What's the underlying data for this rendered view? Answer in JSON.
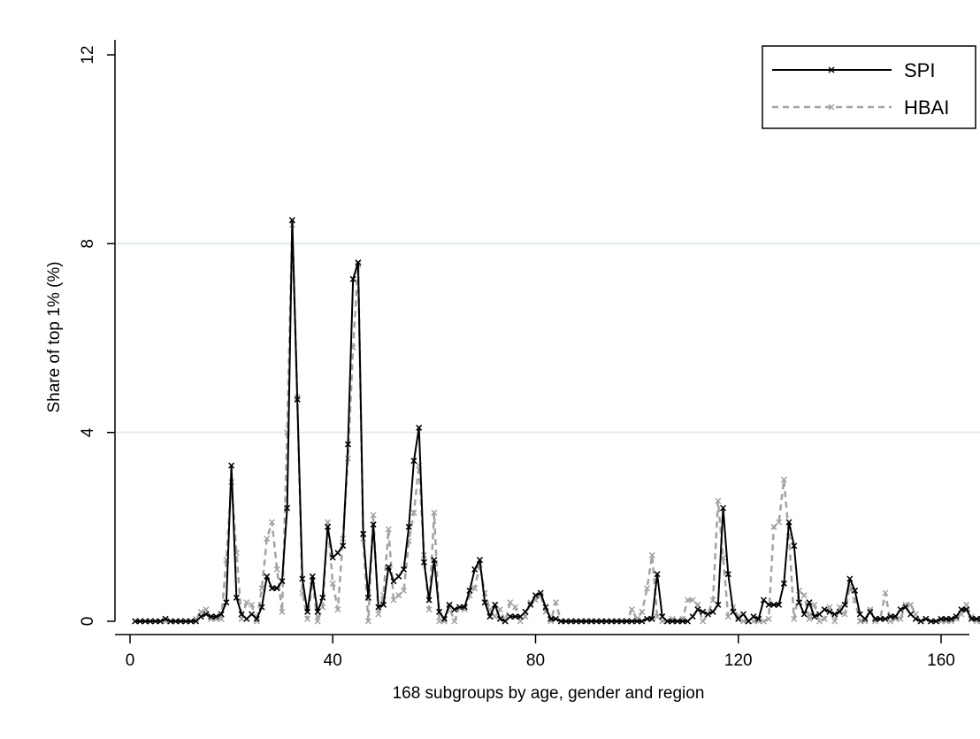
{
  "chart_data": {
    "type": "line",
    "title": "",
    "xlabel": "168 subgroups by age, gender and region",
    "ylabel": "Share of top 1% (%)",
    "xlim": [
      0,
      170
    ],
    "ylim": [
      0,
      12
    ],
    "xticks": [
      0,
      40,
      80,
      120,
      160
    ],
    "yticks": [
      0,
      4,
      8,
      12
    ],
    "grid": "horizontal",
    "legend": "top-right",
    "x": [
      1,
      2,
      3,
      4,
      5,
      6,
      7,
      8,
      9,
      10,
      11,
      12,
      13,
      14,
      15,
      16,
      17,
      18,
      19,
      20,
      21,
      22,
      23,
      24,
      25,
      26,
      27,
      28,
      29,
      30,
      31,
      32,
      33,
      34,
      35,
      36,
      37,
      38,
      39,
      40,
      41,
      42,
      43,
      44,
      45,
      46,
      47,
      48,
      49,
      50,
      51,
      52,
      53,
      54,
      55,
      56,
      57,
      58,
      59,
      60,
      61,
      62,
      63,
      64,
      65,
      66,
      67,
      68,
      69,
      70,
      71,
      72,
      73,
      74,
      75,
      76,
      77,
      78,
      79,
      80,
      81,
      82,
      83,
      84,
      85,
      86,
      87,
      88,
      89,
      90,
      91,
      92,
      93,
      94,
      95,
      96,
      97,
      98,
      99,
      100,
      101,
      102,
      103,
      104,
      105,
      106,
      107,
      108,
      109,
      110,
      111,
      112,
      113,
      114,
      115,
      116,
      117,
      118,
      119,
      120,
      121,
      122,
      123,
      124,
      125,
      126,
      127,
      128,
      129,
      130,
      131,
      132,
      133,
      134,
      135,
      136,
      137,
      138,
      139,
      140,
      141,
      142,
      143,
      144,
      145,
      146,
      147,
      148,
      149,
      150,
      151,
      152,
      153,
      154,
      155,
      156,
      157,
      158,
      159,
      160,
      161,
      162,
      163,
      164,
      165,
      166,
      167,
      168
    ],
    "series": [
      {
        "name": "SPI",
        "color": "#000000",
        "dash": "solid",
        "values": [
          0,
          0,
          0,
          0,
          0,
          0,
          0.05,
          0,
          0,
          0,
          0,
          0,
          0,
          0.1,
          0.15,
          0.1,
          0.1,
          0.15,
          0.4,
          3.3,
          0.5,
          0.15,
          0.05,
          0.15,
          0.05,
          0.3,
          0.95,
          0.7,
          0.7,
          0.85,
          2.4,
          8.5,
          4.7,
          0.9,
          0.2,
          0.95,
          0.2,
          0.5,
          2.0,
          1.35,
          1.45,
          1.6,
          3.75,
          7.25,
          7.6,
          1.85,
          0.5,
          2.05,
          0.3,
          0.35,
          1.15,
          0.85,
          0.95,
          1.1,
          2.0,
          3.4,
          4.1,
          1.25,
          0.45,
          1.3,
          0.2,
          0.05,
          0.35,
          0.25,
          0.3,
          0.3,
          0.65,
          1.1,
          1.3,
          0.4,
          0.1,
          0.35,
          0.05,
          0,
          0.1,
          0.1,
          0.1,
          0.2,
          0.35,
          0.55,
          0.6,
          0.3,
          0.05,
          0.05,
          0,
          0,
          0,
          0,
          0,
          0,
          0,
          0,
          0,
          0,
          0,
          0,
          0,
          0,
          0,
          0,
          0,
          0.05,
          0.05,
          1.0,
          0.1,
          0,
          0,
          0,
          0,
          0,
          0.1,
          0.25,
          0.2,
          0.15,
          0.2,
          0.35,
          2.4,
          1.0,
          0.2,
          0.05,
          0.15,
          0,
          0.1,
          0.05,
          0.45,
          0.35,
          0.35,
          0.35,
          0.8,
          2.1,
          1.6,
          0.4,
          0.15,
          0.4,
          0.1,
          0.15,
          0.25,
          0.2,
          0.15,
          0.2,
          0.35,
          0.9,
          0.65,
          0.15,
          0.05,
          0.2,
          0.05,
          0.05,
          0.05,
          0.1,
          0.1,
          0.25,
          0.3,
          0.15,
          0.05,
          0,
          0.05,
          0,
          0,
          0.05,
          0.05,
          0.05,
          0.1,
          0.25,
          0.25,
          0.05,
          0.05,
          0.05
        ]
      },
      {
        "name": "HBAI",
        "color": "#a3a3a3",
        "dash": "dashed",
        "values": [
          0,
          0,
          0,
          0,
          0,
          0,
          0,
          0,
          0,
          0,
          0,
          0,
          0.05,
          0.2,
          0.25,
          0.05,
          0.05,
          0.05,
          1.3,
          2.95,
          1.45,
          0.05,
          0.4,
          0.35,
          0,
          0.7,
          1.75,
          2.1,
          1.1,
          0.2,
          4.0,
          8.4,
          4.75,
          0.6,
          0.05,
          0.85,
          0,
          0.3,
          2.1,
          0.8,
          0.25,
          1.75,
          3.45,
          5.8,
          7.55,
          1.75,
          0,
          2.25,
          0.15,
          0.55,
          1.95,
          0.45,
          0.55,
          0.65,
          1.7,
          2.3,
          3.3,
          1.4,
          0.25,
          2.3,
          0,
          0,
          0.3,
          0,
          0.3,
          0.25,
          0.55,
          0.7,
          1.2,
          0.6,
          0.25,
          0.1,
          0.25,
          0,
          0.4,
          0.3,
          0,
          0.1,
          0.4,
          0.45,
          0.55,
          0.2,
          0,
          0.4,
          0,
          0,
          0,
          0,
          0,
          0,
          0,
          0,
          0,
          0,
          0,
          0,
          0,
          0,
          0.25,
          0.05,
          0.2,
          0.7,
          1.4,
          0.1,
          0,
          0,
          0.05,
          0,
          0.05,
          0.45,
          0.45,
          0.35,
          0,
          0.15,
          0.45,
          2.55,
          1.35,
          0.1,
          0.3,
          0.1,
          0,
          0,
          0,
          0,
          0,
          0.05,
          2.0,
          2.1,
          3.0,
          1.8,
          0.05,
          0.65,
          0.55,
          0.05,
          0.35,
          0,
          0.05,
          0.3,
          0,
          0.3,
          0.15,
          0.75,
          0.45,
          0,
          0,
          0.25,
          0,
          0.05,
          0.6,
          0,
          0.05,
          0.05,
          0.35,
          0.35,
          0.15,
          0,
          0.05,
          0,
          0,
          0,
          0,
          0,
          0.05,
          0.15,
          0.35,
          0.1,
          0,
          0
        ]
      }
    ]
  }
}
